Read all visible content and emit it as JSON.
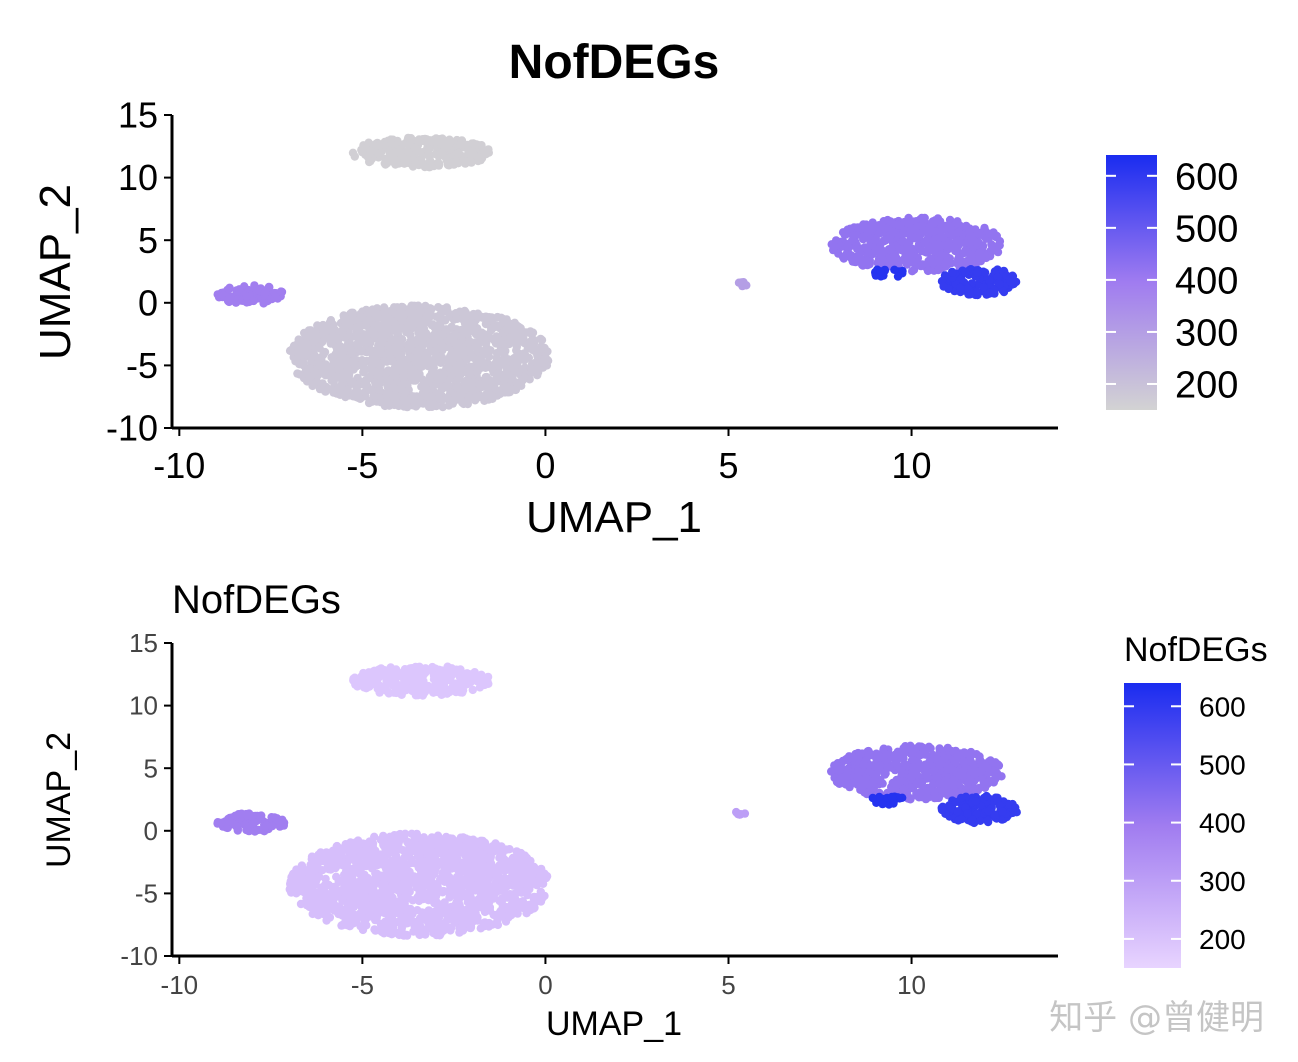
{
  "chart_data": [
    {
      "type": "scatter",
      "title": "NofDEGs",
      "xlabel": "UMAP_1",
      "ylabel": "UMAP_2",
      "xlim": [
        -10.2,
        14
      ],
      "ylim": [
        -10,
        15
      ],
      "xticks": [
        -10,
        -5,
        0,
        5,
        10
      ],
      "yticks": [
        -10,
        -5,
        0,
        5,
        10,
        15
      ],
      "color_scale": {
        "low": "#d3d3d3",
        "high": "#1a2cf0",
        "min": 150,
        "max": 640
      },
      "legend": {
        "title": "",
        "ticks": [
          200,
          300,
          400,
          500,
          600
        ],
        "position": "right"
      },
      "clusters": [
        {
          "x_range": [
            -5.3,
            -1.5
          ],
          "y_range": [
            10.8,
            13.2
          ],
          "value": 160,
          "approx_points": 260
        },
        {
          "x_range": [
            -9.0,
            -7.1
          ],
          "y_range": [
            -0.1,
            1.4
          ],
          "value": 390,
          "approx_points": 90
        },
        {
          "x_range": [
            -7.0,
            0.1
          ],
          "y_range": [
            -8.4,
            -0.2
          ],
          "value": 185,
          "approx_points": 1500
        },
        {
          "x_range": [
            5.2,
            5.5
          ],
          "y_range": [
            1.2,
            1.7
          ],
          "value": 300,
          "approx_points": 6
        },
        {
          "x_range": [
            7.8,
            12.5
          ],
          "y_range": [
            2.5,
            6.8
          ],
          "value": 420,
          "approx_points": 520
        },
        {
          "x_range": [
            8.9,
            9.8
          ],
          "y_range": [
            2.0,
            2.9
          ],
          "value": 620,
          "approx_points": 18
        },
        {
          "x_range": [
            10.8,
            12.9
          ],
          "y_range": [
            0.6,
            2.8
          ],
          "value": 590,
          "approx_points": 140
        }
      ]
    },
    {
      "type": "scatter",
      "title": "NofDEGs",
      "xlabel": "UMAP_1",
      "ylabel": "UMAP_2",
      "xlim": [
        -10.2,
        14
      ],
      "ylim": [
        -10,
        15
      ],
      "xticks": [
        -10,
        -5,
        0,
        5,
        10
      ],
      "yticks": [
        -10,
        -5,
        0,
        5,
        10,
        15
      ],
      "color_scale": {
        "low": "#e8d4ff",
        "high": "#1a2cf0",
        "min": 150,
        "max": 640
      },
      "legend": {
        "title": "NofDEGs",
        "ticks": [
          200,
          300,
          400,
          500,
          600
        ],
        "position": "right"
      },
      "clusters": [
        {
          "x_range": [
            -5.3,
            -1.5
          ],
          "y_range": [
            10.8,
            13.2
          ],
          "value": 190,
          "approx_points": 260
        },
        {
          "x_range": [
            -9.0,
            -7.1
          ],
          "y_range": [
            -0.1,
            1.4
          ],
          "value": 390,
          "approx_points": 90
        },
        {
          "x_range": [
            -7.0,
            0.1
          ],
          "y_range": [
            -8.4,
            -0.2
          ],
          "value": 210,
          "approx_points": 1500
        },
        {
          "x_range": [
            5.2,
            5.5
          ],
          "y_range": [
            1.2,
            1.7
          ],
          "value": 300,
          "approx_points": 6
        },
        {
          "x_range": [
            7.8,
            12.5
          ],
          "y_range": [
            2.5,
            6.8
          ],
          "value": 420,
          "approx_points": 520
        },
        {
          "x_range": [
            8.9,
            9.8
          ],
          "y_range": [
            2.0,
            2.9
          ],
          "value": 620,
          "approx_points": 18
        },
        {
          "x_range": [
            10.8,
            12.9
          ],
          "y_range": [
            0.6,
            2.8
          ],
          "value": 590,
          "approx_points": 140
        }
      ]
    }
  ],
  "watermark": "知乎 @曾健明"
}
